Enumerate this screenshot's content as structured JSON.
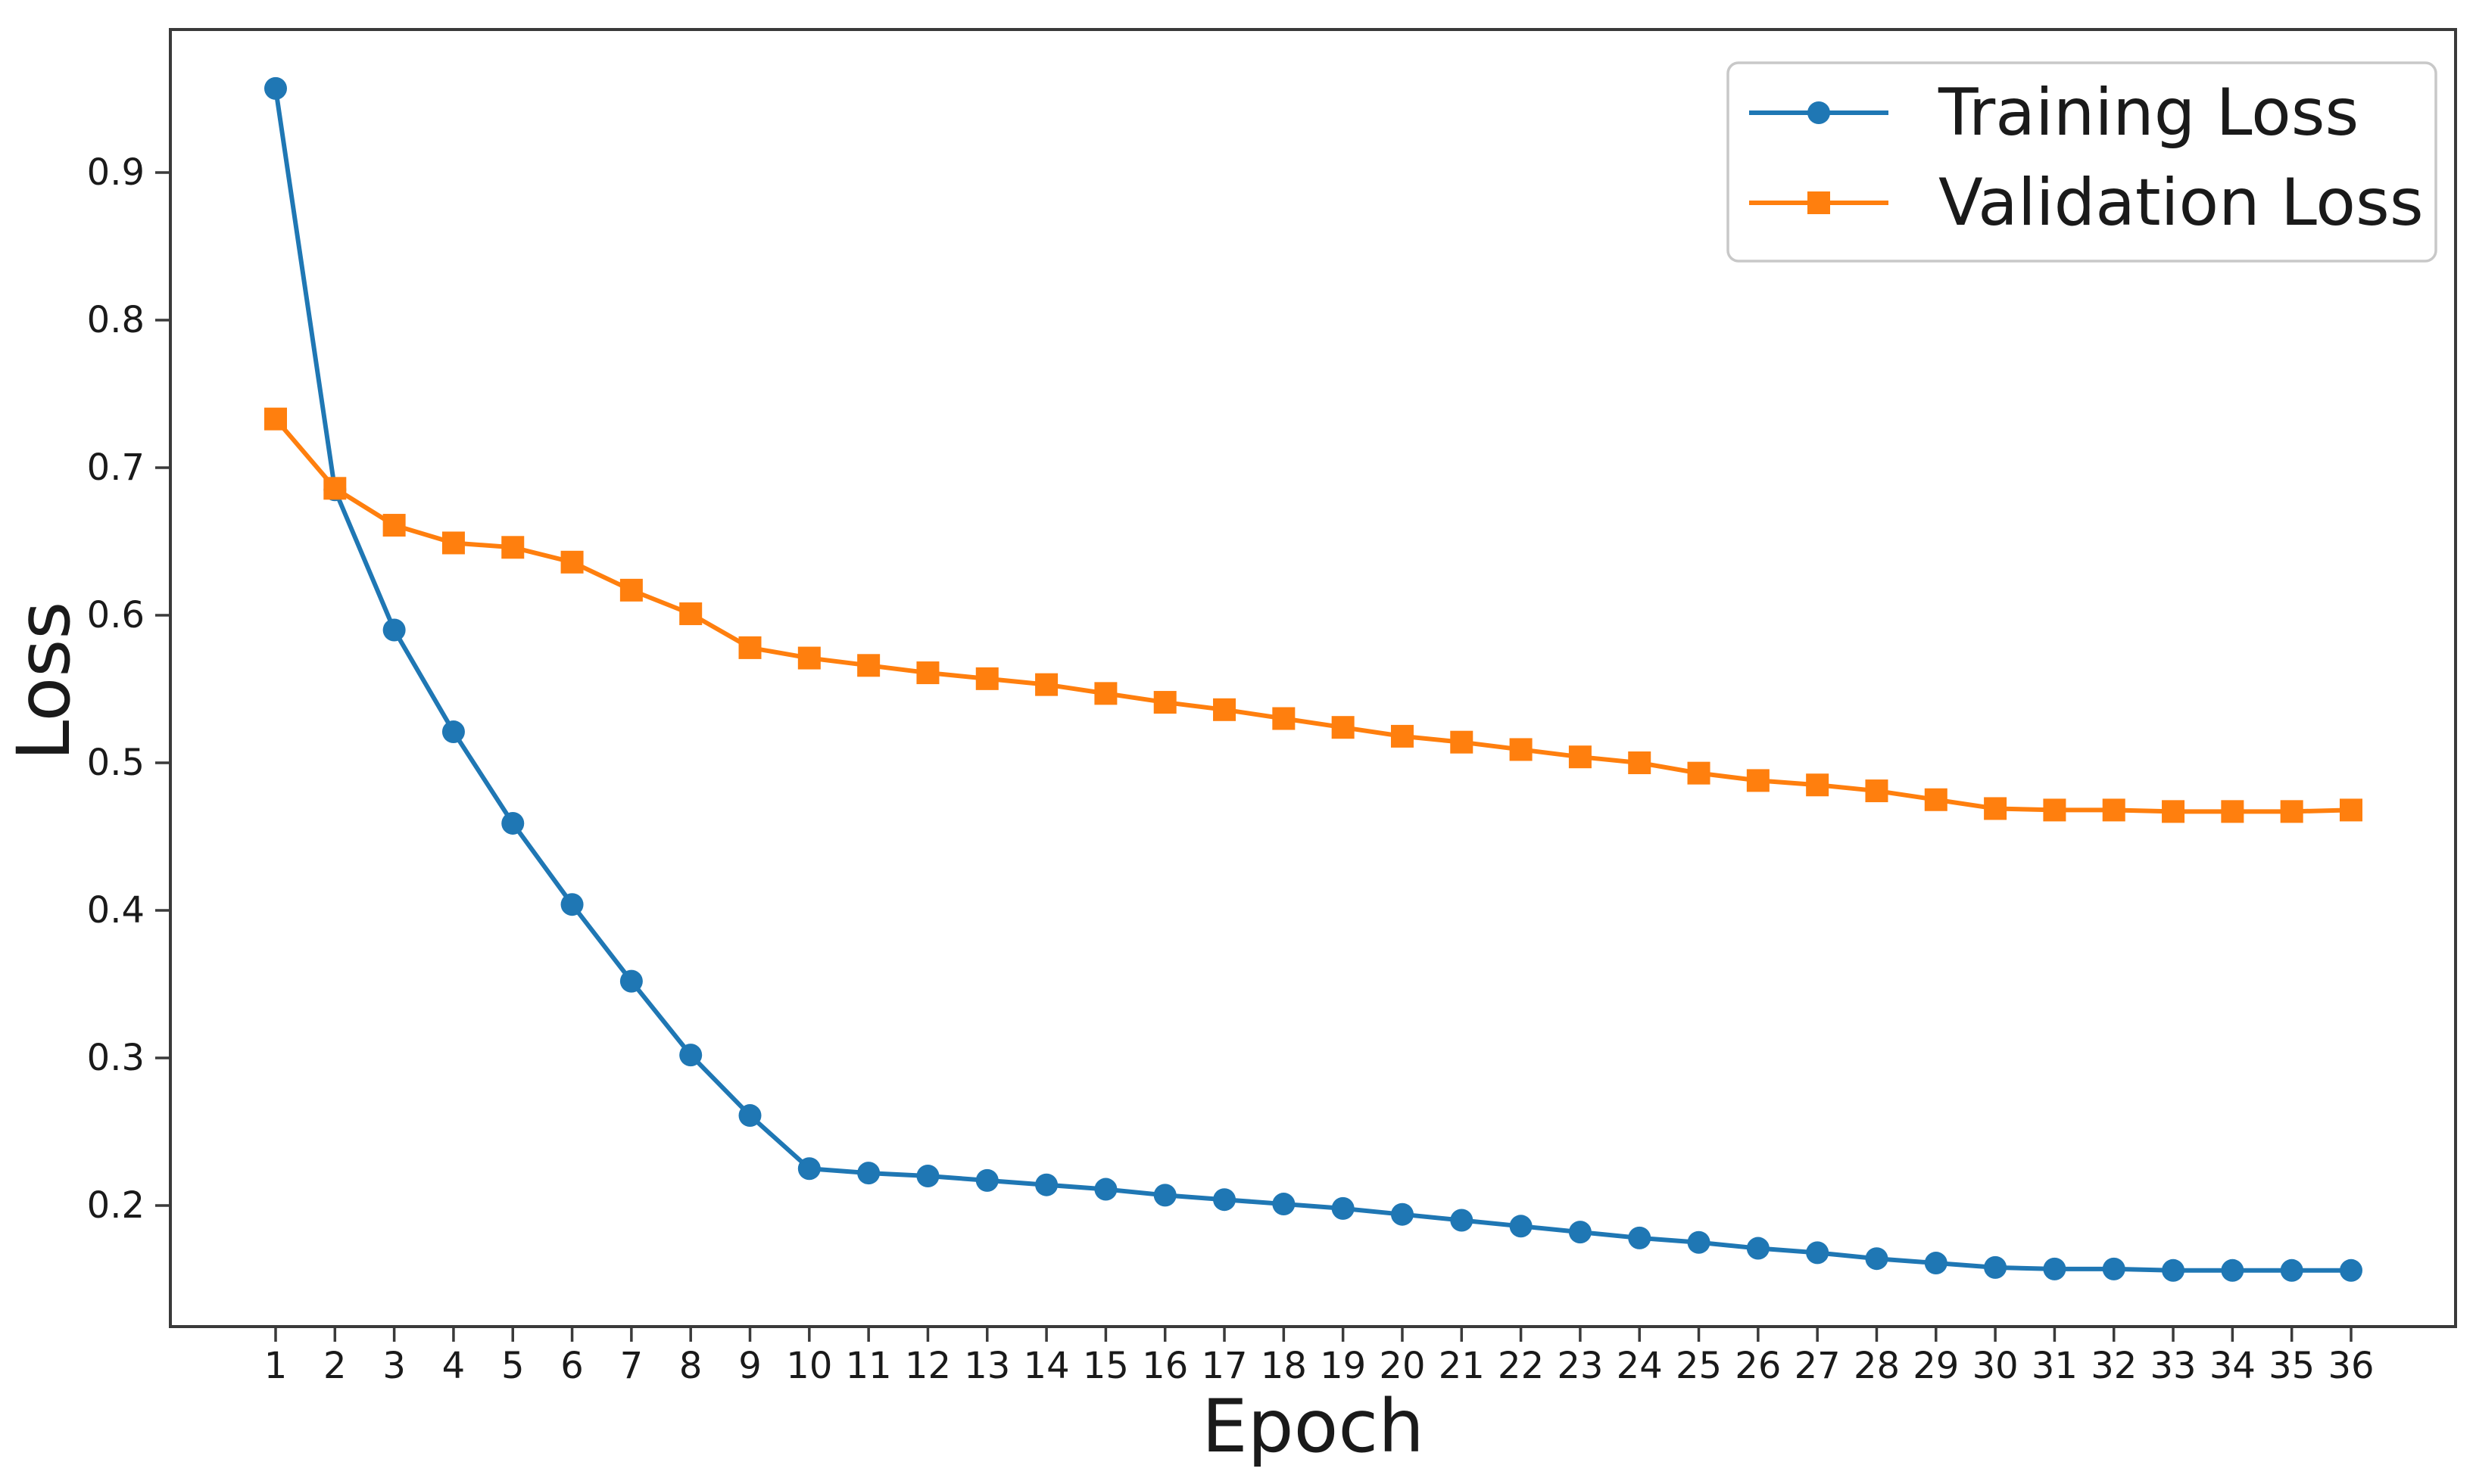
{
  "chart_data": {
    "type": "line",
    "title": "",
    "xlabel": "Epoch",
    "ylabel": "Loss",
    "x": [
      1,
      2,
      3,
      4,
      5,
      6,
      7,
      8,
      9,
      10,
      11,
      12,
      13,
      14,
      15,
      16,
      17,
      18,
      19,
      20,
      21,
      22,
      23,
      24,
      25,
      26,
      27,
      28,
      29,
      30,
      31,
      32,
      33,
      34,
      35,
      36
    ],
    "xtick_labels": [
      "1",
      "2",
      "3",
      "4",
      "5",
      "6",
      "7",
      "8",
      "9",
      "10",
      "11",
      "12",
      "13",
      "14",
      "15",
      "16",
      "17",
      "18",
      "19",
      "20",
      "21",
      "22",
      "23",
      "24",
      "25",
      "26",
      "27",
      "28",
      "29",
      "30",
      "31",
      "32",
      "33",
      "34",
      "35",
      "36"
    ],
    "yticks": [
      0.2,
      0.3,
      0.4,
      0.5,
      0.6,
      0.7,
      0.8,
      0.9
    ],
    "ylim": [
      0.118,
      0.997
    ],
    "grid": false,
    "legend_position": "upper right",
    "background_color": "#ffffff",
    "spine_color": "#3a3a3a",
    "series": [
      {
        "name": "Training Loss",
        "color": "#1f77b4",
        "marker": "circle",
        "values": [
          0.957,
          0.685,
          0.59,
          0.521,
          0.459,
          0.404,
          0.352,
          0.302,
          0.261,
          0.225,
          0.222,
          0.22,
          0.217,
          0.214,
          0.211,
          0.207,
          0.204,
          0.201,
          0.198,
          0.194,
          0.19,
          0.186,
          0.182,
          0.178,
          0.175,
          0.171,
          0.168,
          0.164,
          0.161,
          0.158,
          0.157,
          0.157,
          0.156,
          0.156,
          0.156,
          0.156
        ]
      },
      {
        "name": "Validation Loss",
        "color": "#ff7f0e",
        "marker": "square",
        "values": [
          0.733,
          0.686,
          0.661,
          0.649,
          0.646,
          0.636,
          0.617,
          0.601,
          0.578,
          0.571,
          0.566,
          0.561,
          0.557,
          0.553,
          0.547,
          0.541,
          0.536,
          0.53,
          0.524,
          0.518,
          0.514,
          0.509,
          0.504,
          0.5,
          0.493,
          0.488,
          0.485,
          0.481,
          0.475,
          0.469,
          0.468,
          0.468,
          0.467,
          0.467,
          0.467,
          0.468
        ]
      }
    ]
  }
}
